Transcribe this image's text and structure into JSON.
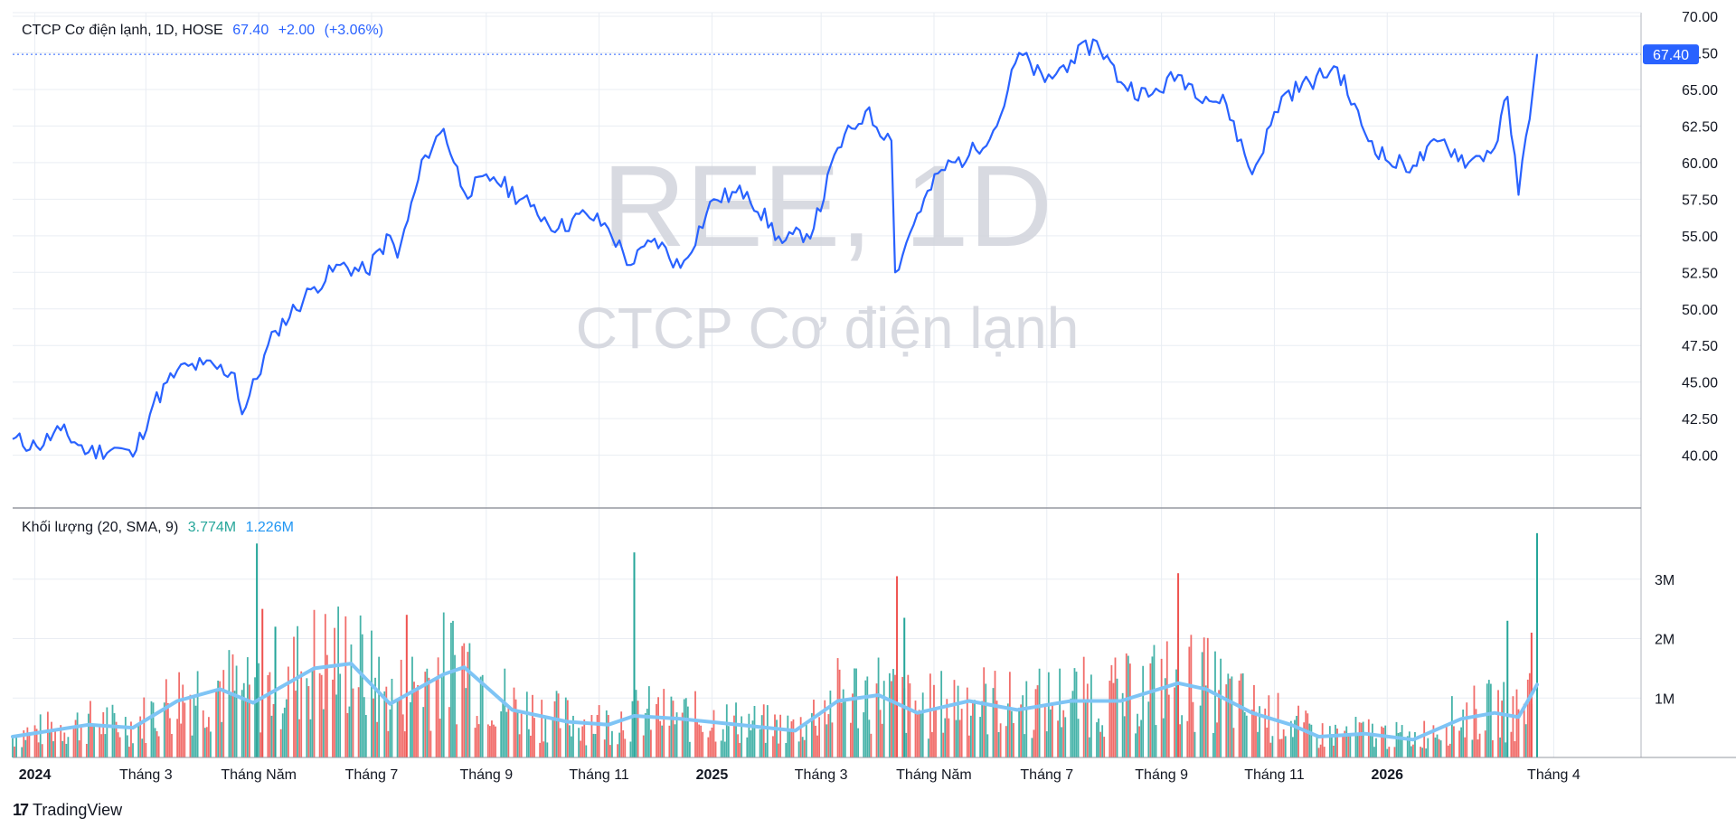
{
  "legend": {
    "title": "CTCP Cơ điện lạnh, 1D, HOSE",
    "last": "67.40",
    "change": "+2.00",
    "change_pct": "(+3.06%)"
  },
  "watermark": {
    "symbol": "REE, 1D",
    "name": "CTCP Cơ điện lạnh"
  },
  "volume_legend": {
    "title": "Khối lượng (20, SMA, 9)",
    "volume": "3.774M",
    "sma": "1.226M"
  },
  "last_price_label": "67.40",
  "brand": {
    "icon": "tradingview-logo-icon",
    "name": "TradingView"
  },
  "colors": {
    "line": "#2962ff",
    "up": "#26a69a",
    "down": "#ef5350",
    "sma": "#7ec4f5",
    "grid": "#e9edf3",
    "axis_text": "#131722"
  },
  "chart_data": [
    {
      "type": "line",
      "series": "price",
      "ylim": [
        38,
        70
      ],
      "y_ticks": [
        "70.00",
        "67.50",
        "65.00",
        "62.50",
        "60.00",
        "57.50",
        "55.00",
        "52.50",
        "50.00",
        "47.50",
        "45.00",
        "42.50",
        "40.00"
      ],
      "x_tick_labels": [
        "2024",
        "Tháng 3",
        "Tháng Năm",
        "Tháng 7",
        "Tháng 9",
        "Tháng 11",
        "2025",
        "Tháng 3",
        "Tháng Năm",
        "Tháng 7",
        "Tháng 9",
        "Tháng 11",
        "2026",
        "Tháng 4"
      ],
      "grid": true,
      "x": [
        "2023-12-20",
        "2024-01-02",
        "2024-01-15",
        "2024-01-30",
        "2024-02-15",
        "2024-02-23",
        "2024-03-05",
        "2024-03-18",
        "2024-04-01",
        "2024-04-18",
        "2024-04-22",
        "2024-05-10",
        "2024-05-31",
        "2024-06-14",
        "2024-06-28",
        "2024-07-11",
        "2024-07-15",
        "2024-07-30",
        "2024-08-09",
        "2024-08-20",
        "2024-09-05",
        "2024-09-25",
        "2024-10-10",
        "2024-10-25",
        "2024-11-06",
        "2024-11-18",
        "2024-12-01",
        "2024-12-15",
        "2025-01-02",
        "2025-01-20",
        "2025-02-08",
        "2025-02-25",
        "2025-03-10",
        "2025-03-25",
        "2025-04-08",
        "2025-04-10",
        "2025-04-22",
        "2025-05-05",
        "2025-05-20",
        "2025-06-04",
        "2025-06-16",
        "2025-06-30",
        "2025-07-14",
        "2025-07-28",
        "2025-08-10",
        "2025-08-25",
        "2025-09-10",
        "2025-09-25",
        "2025-10-06",
        "2025-10-20",
        "2025-11-05",
        "2025-11-20",
        "2025-12-05",
        "2025-12-20",
        "2026-01-02",
        "2026-01-15",
        "2026-01-30",
        "2026-02-14",
        "2026-02-28",
        "2026-03-07",
        "2026-03-13",
        "2026-03-23"
      ],
      "y": [
        41.1,
        40.6,
        41.7,
        40.2,
        40.5,
        39.9,
        43.5,
        45.8,
        46.2,
        45.6,
        42.8,
        48.5,
        51.5,
        53.0,
        52.5,
        55.0,
        53.5,
        60.5,
        62.3,
        58.0,
        59.0,
        57.0,
        55.5,
        56.5,
        55.5,
        53.0,
        54.8,
        52.8,
        57.5,
        58.0,
        54.5,
        55.5,
        61.0,
        63.5,
        61.5,
        52.5,
        56.5,
        59.5,
        60.5,
        62.5,
        67.5,
        65.5,
        67.0,
        68.3,
        65.5,
        64.5,
        66.0,
        64.5,
        64.0,
        59.2,
        64.5,
        65.5,
        66.5,
        62.0,
        60.0,
        59.8,
        61.5,
        60.0,
        61.0,
        64.5,
        57.8,
        67.4
      ]
    },
    {
      "type": "bar",
      "series": "volume",
      "ylim": [
        0,
        4.0
      ],
      "y_ticks": [
        "3M",
        "2M",
        "1M"
      ],
      "unit": "M",
      "last_volume": 3.774,
      "sma_last": 1.226,
      "sma_x": [
        "2023-12-20",
        "2024-01-30",
        "2024-02-23",
        "2024-03-18",
        "2024-04-10",
        "2024-04-28",
        "2024-05-31",
        "2024-06-20",
        "2024-07-11",
        "2024-08-09",
        "2024-08-20",
        "2024-09-15",
        "2024-10-15",
        "2024-11-06",
        "2024-11-20",
        "2024-12-15",
        "2025-01-15",
        "2025-02-15",
        "2025-03-10",
        "2025-04-01",
        "2025-04-22",
        "2025-05-20",
        "2025-06-15",
        "2025-07-14",
        "2025-08-10",
        "2025-09-10",
        "2025-09-25",
        "2025-10-20",
        "2025-11-10",
        "2025-11-25",
        "2025-12-20",
        "2026-01-15",
        "2026-02-10",
        "2026-02-28",
        "2026-03-13",
        "2026-03-23"
      ],
      "sma_y": [
        0.35,
        0.55,
        0.5,
        0.95,
        1.15,
        0.92,
        1.5,
        1.58,
        0.9,
        1.4,
        1.52,
        0.8,
        0.6,
        0.55,
        0.7,
        0.65,
        0.55,
        0.45,
        0.95,
        1.05,
        0.75,
        0.95,
        0.8,
        0.95,
        0.95,
        1.25,
        1.15,
        0.75,
        0.55,
        0.35,
        0.4,
        0.3,
        0.65,
        0.75,
        0.68,
        1.226
      ],
      "spikes": [
        {
          "x": "2024-04-30",
          "v": 3.6
        },
        {
          "x": "2024-05-03",
          "v": 2.5
        },
        {
          "x": "2024-05-10",
          "v": 2.2
        },
        {
          "x": "2024-07-20",
          "v": 2.4
        },
        {
          "x": "2024-11-20",
          "v": 3.45
        },
        {
          "x": "2025-04-11",
          "v": 3.05
        },
        {
          "x": "2025-04-15",
          "v": 2.35
        },
        {
          "x": "2025-09-10",
          "v": 3.1
        },
        {
          "x": "2026-03-07",
          "v": 2.3
        },
        {
          "x": "2026-03-20",
          "v": 2.1
        },
        {
          "x": "2026-03-23",
          "v": 3.774
        }
      ]
    }
  ]
}
